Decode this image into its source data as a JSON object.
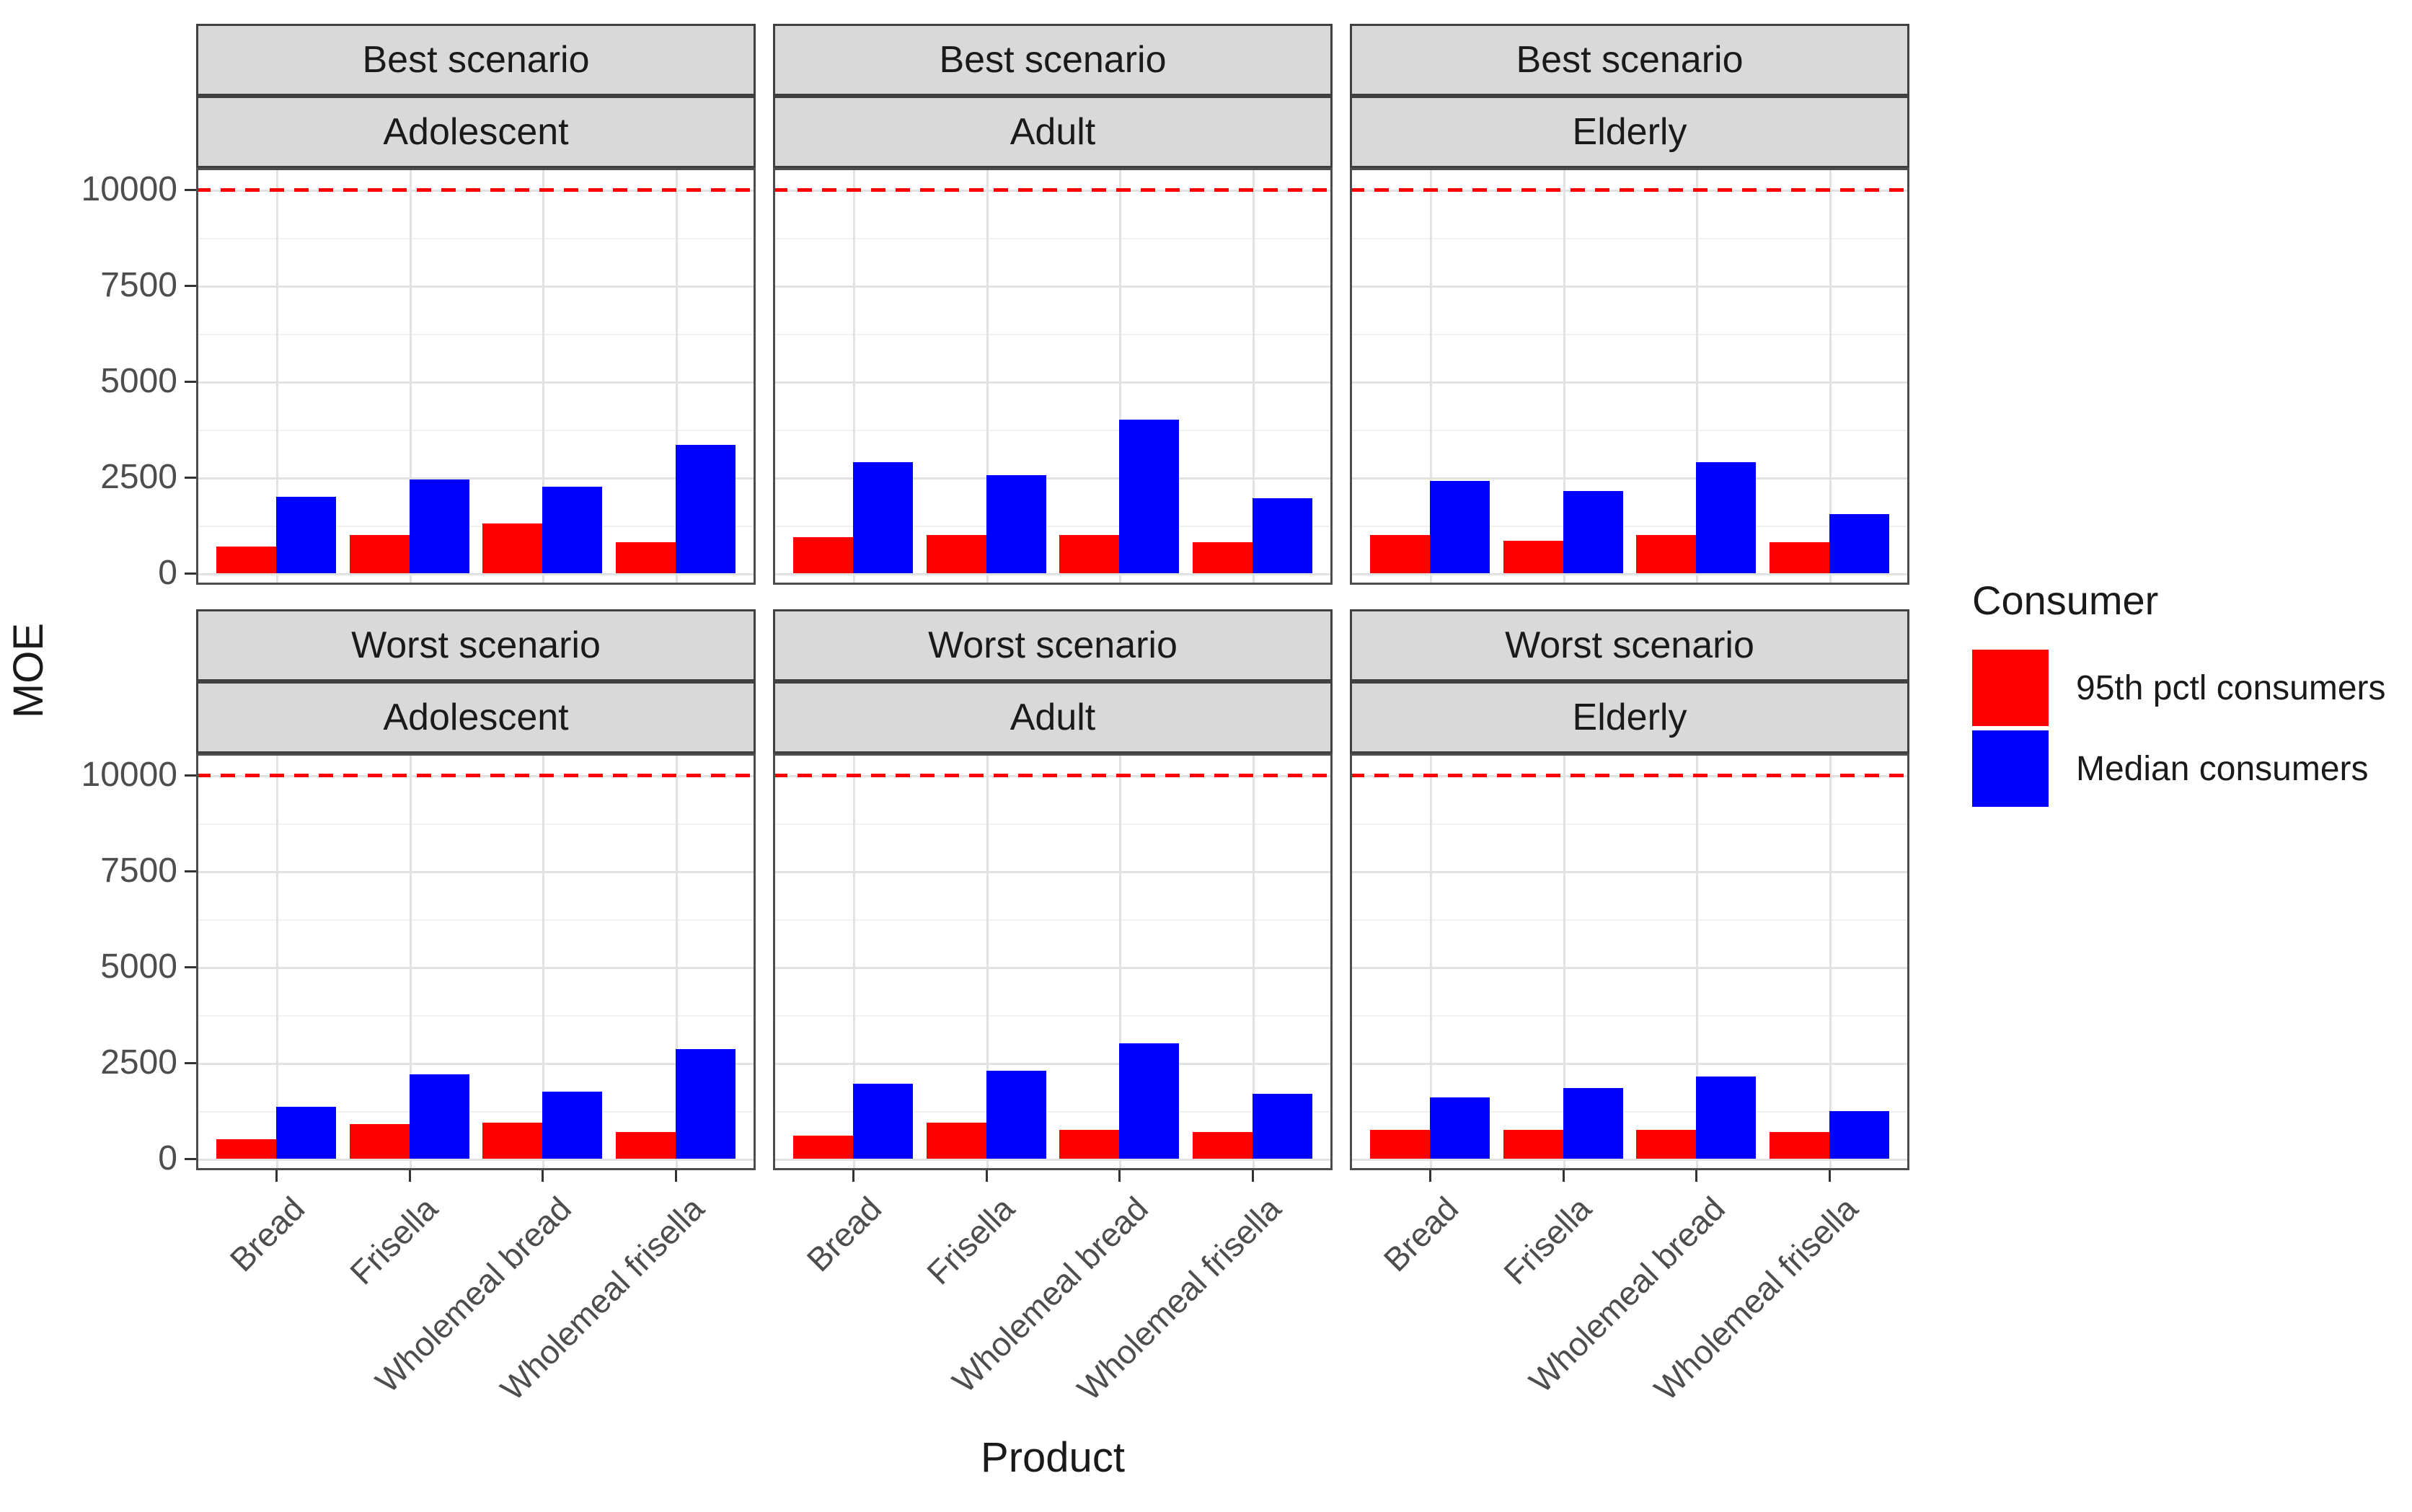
{
  "axes": {
    "y_title": "MOE",
    "x_title": "Product",
    "y_tick_labels": [
      "0",
      "2500",
      "5000",
      "7500",
      "10000"
    ],
    "y_tick_values": [
      0,
      2500,
      5000,
      7500,
      10000
    ],
    "y_minor_values": [
      1250,
      3750,
      6250,
      8750
    ]
  },
  "legend": {
    "title": "Consumer",
    "items": [
      {
        "label": "95th pctl consumers",
        "color": "#ff0000"
      },
      {
        "label": "Median consumers",
        "color": "#0000ff"
      }
    ]
  },
  "colors": {
    "bar_95th": "#ff0000",
    "bar_median": "#0000ff",
    "reference_line": "#ff0000",
    "strip_fill": "#d9d9d9",
    "panel_border": "#4d4d4d",
    "grid_major": "#e2e2e2",
    "grid_minor": "#f1f1f1",
    "axis_text": "#4d4d4d"
  },
  "chart_data": {
    "type": "bar",
    "title": "",
    "xlabel": "Product",
    "ylabel": "MOE",
    "ylim": [
      0,
      10500
    ],
    "grid": true,
    "legend_position": "right",
    "reference_line": 10000,
    "facet_rows": [
      "Best scenario",
      "Worst scenario"
    ],
    "facet_cols": [
      "Adolescent",
      "Adult",
      "Elderly"
    ],
    "categories": [
      "Bread",
      "Frisella",
      "Wholemeal bread",
      "Wholemeal frisella"
    ],
    "series_names": [
      "95th pctl consumers",
      "Median consumers"
    ],
    "panels": [
      {
        "row": "Best scenario",
        "col": "Adolescent",
        "series": [
          {
            "name": "95th pctl consumers",
            "values": [
              700,
              1000,
              1300,
              800
            ]
          },
          {
            "name": "Median consumers",
            "values": [
              2000,
              2450,
              2250,
              3350
            ]
          }
        ]
      },
      {
        "row": "Best scenario",
        "col": "Adult",
        "series": [
          {
            "name": "95th pctl consumers",
            "values": [
              950,
              1000,
              1000,
              800
            ]
          },
          {
            "name": "Median consumers",
            "values": [
              2900,
              2550,
              4000,
              1950
            ]
          }
        ]
      },
      {
        "row": "Best scenario",
        "col": "Elderly",
        "series": [
          {
            "name": "95th pctl consumers",
            "values": [
              1000,
              850,
              1000,
              800
            ]
          },
          {
            "name": "Median consumers",
            "values": [
              2400,
              2150,
              2900,
              1550
            ]
          }
        ]
      },
      {
        "row": "Worst scenario",
        "col": "Adolescent",
        "series": [
          {
            "name": "95th pctl consumers",
            "values": [
              500,
              900,
              950,
              700
            ]
          },
          {
            "name": "Median consumers",
            "values": [
              1350,
              2200,
              1750,
              2850
            ]
          }
        ]
      },
      {
        "row": "Worst scenario",
        "col": "Adult",
        "series": [
          {
            "name": "95th pctl consumers",
            "values": [
              600,
              950,
              750,
              700
            ]
          },
          {
            "name": "Median consumers",
            "values": [
              1950,
              2300,
              3000,
              1700
            ]
          }
        ]
      },
      {
        "row": "Worst scenario",
        "col": "Elderly",
        "series": [
          {
            "name": "95th pctl consumers",
            "values": [
              750,
              750,
              750,
              700
            ]
          },
          {
            "name": "Median consumers",
            "values": [
              1600,
              1850,
              2150,
              1250
            ]
          }
        ]
      }
    ]
  }
}
